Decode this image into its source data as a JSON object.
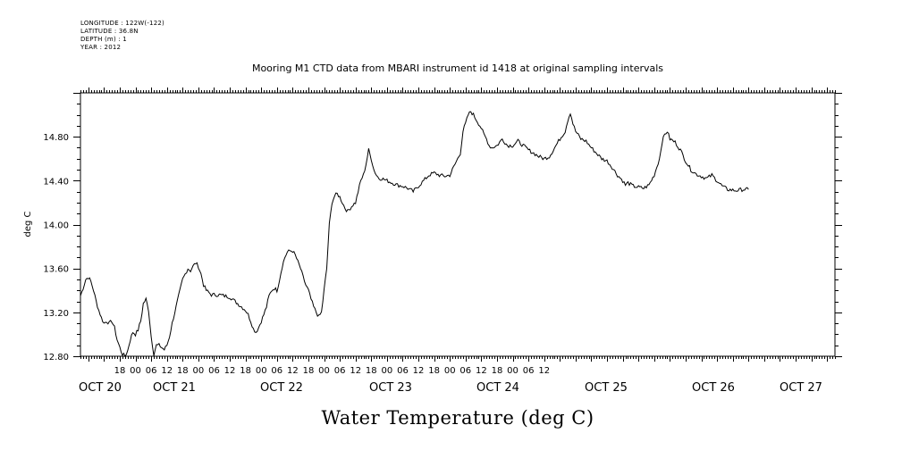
{
  "header": {
    "longitude": "LONGITUDE : 122W(-122)",
    "latitude": "LATITUDE : 36.8N",
    "depth": "DEPTH (m) : 1",
    "year": "YEAR : 2012"
  },
  "chart_data": {
    "type": "line",
    "title": "Mooring M1 CTD data from MBARI instrument id 1418 at original sampling intervals",
    "xlabel": "Water Temperature (deg C)",
    "ylabel": "deg C",
    "ylim": [
      12.8,
      15.2
    ],
    "xlim_hours": [
      -45,
      243
    ],
    "y_ticks": [
      "12.80",
      "13.20",
      "13.60",
      "14.00",
      "14.40",
      "14.80"
    ],
    "hour_ticks": [
      "18",
      "00",
      "06",
      "12",
      "18",
      "00",
      "06",
      "12",
      "18",
      "00",
      "06",
      "12",
      "18",
      "00",
      "06",
      "12",
      "18",
      "00",
      "06",
      "12",
      "18",
      "00",
      "06",
      "12",
      "18",
      "00",
      "06",
      "12"
    ],
    "date_labels": [
      "OCT 20",
      "OCT 21",
      "OCT 22",
      "OCT 23",
      "OCT 24",
      "OCT 25",
      "OCT 26",
      "OCT 27"
    ],
    "x_time_origin": "2012-10-20 00:00",
    "series": [
      {
        "color": "#000000",
        "points": [
          [
            -45,
            13.35
          ],
          [
            -44,
            13.42
          ],
          [
            -43,
            13.5
          ],
          [
            -42,
            13.52
          ],
          [
            -41,
            13.48
          ],
          [
            -40,
            13.4
          ],
          [
            -39,
            13.3
          ],
          [
            -38,
            13.22
          ],
          [
            -37,
            13.15
          ],
          [
            -36,
            13.1
          ],
          [
            -35,
            13.12
          ],
          [
            -34,
            13.1
          ],
          [
            -33,
            13.12
          ],
          [
            -32,
            13.06
          ],
          [
            -31,
            12.95
          ],
          [
            -30,
            12.88
          ],
          [
            -29,
            12.82
          ],
          [
            -28,
            12.8
          ],
          [
            -27,
            12.85
          ],
          [
            -26,
            12.95
          ],
          [
            -25,
            13.02
          ],
          [
            -24,
            13.0
          ],
          [
            -23,
            13.04
          ],
          [
            -22,
            13.12
          ],
          [
            -21,
            13.28
          ],
          [
            -20,
            13.32
          ],
          [
            -19,
            13.22
          ],
          [
            -18,
            12.98
          ],
          [
            -17,
            12.82
          ],
          [
            -16,
            12.9
          ],
          [
            -15,
            12.9
          ],
          [
            -14,
            12.88
          ],
          [
            -13,
            12.86
          ],
          [
            -12,
            12.9
          ],
          [
            -11,
            12.98
          ],
          [
            -10,
            13.1
          ],
          [
            -9,
            13.2
          ],
          [
            -8,
            13.3
          ],
          [
            -7,
            13.4
          ],
          [
            -6,
            13.5
          ],
          [
            -5,
            13.55
          ],
          [
            -4,
            13.6
          ],
          [
            -3,
            13.58
          ],
          [
            -2,
            13.62
          ],
          [
            -1,
            13.65
          ],
          [
            0,
            13.62
          ],
          [
            1,
            13.55
          ],
          [
            2,
            13.45
          ],
          [
            3,
            13.4
          ],
          [
            4,
            13.38
          ],
          [
            5,
            13.36
          ],
          [
            6,
            13.36
          ],
          [
            8,
            13.36
          ],
          [
            10,
            13.35
          ],
          [
            12,
            13.34
          ],
          [
            14,
            13.3
          ],
          [
            16,
            13.26
          ],
          [
            18,
            13.22
          ],
          [
            19,
            13.18
          ],
          [
            20,
            13.12
          ],
          [
            21,
            13.05
          ],
          [
            22,
            13.02
          ],
          [
            23,
            13.06
          ],
          [
            24,
            13.12
          ],
          [
            25,
            13.18
          ],
          [
            26,
            13.25
          ],
          [
            27,
            13.35
          ],
          [
            28,
            13.4
          ],
          [
            29,
            13.42
          ],
          [
            30,
            13.4
          ],
          [
            31,
            13.5
          ],
          [
            32,
            13.62
          ],
          [
            33,
            13.7
          ],
          [
            34,
            13.75
          ],
          [
            35,
            13.76
          ],
          [
            36,
            13.76
          ],
          [
            37,
            13.72
          ],
          [
            38,
            13.66
          ],
          [
            39,
            13.6
          ],
          [
            40,
            13.52
          ],
          [
            41,
            13.45
          ],
          [
            42,
            13.4
          ],
          [
            43,
            13.32
          ],
          [
            44,
            13.25
          ],
          [
            45,
            13.2
          ],
          [
            46,
            13.16
          ],
          [
            47,
            13.2
          ],
          [
            48,
            13.4
          ],
          [
            49,
            13.6
          ],
          [
            50,
            14.0
          ],
          [
            51,
            14.2
          ],
          [
            52,
            14.26
          ],
          [
            53,
            14.28
          ],
          [
            54,
            14.25
          ],
          [
            55,
            14.2
          ],
          [
            56,
            14.15
          ],
          [
            57,
            14.12
          ],
          [
            58,
            14.15
          ],
          [
            59,
            14.18
          ],
          [
            60,
            14.2
          ],
          [
            61,
            14.3
          ],
          [
            62,
            14.4
          ],
          [
            63,
            14.45
          ],
          [
            64,
            14.55
          ],
          [
            65,
            14.68
          ],
          [
            66,
            14.6
          ],
          [
            67,
            14.5
          ],
          [
            68,
            14.45
          ],
          [
            69,
            14.42
          ],
          [
            70,
            14.42
          ],
          [
            72,
            14.4
          ],
          [
            74,
            14.38
          ],
          [
            76,
            14.36
          ],
          [
            78,
            14.35
          ],
          [
            80,
            14.33
          ],
          [
            82,
            14.3
          ],
          [
            84,
            14.35
          ],
          [
            86,
            14.4
          ],
          [
            88,
            14.45
          ],
          [
            90,
            14.47
          ],
          [
            92,
            14.45
          ],
          [
            94,
            14.44
          ],
          [
            96,
            14.45
          ],
          [
            98,
            14.55
          ],
          [
            100,
            14.65
          ],
          [
            101,
            14.85
          ],
          [
            102,
            14.92
          ],
          [
            103,
            15.0
          ],
          [
            104,
            15.03
          ],
          [
            105,
            15.0
          ],
          [
            106,
            14.96
          ],
          [
            107,
            14.92
          ],
          [
            108,
            14.88
          ],
          [
            109,
            14.82
          ],
          [
            110,
            14.78
          ],
          [
            111,
            14.72
          ],
          [
            112,
            14.7
          ],
          [
            114,
            14.72
          ],
          [
            116,
            14.78
          ],
          [
            118,
            14.72
          ],
          [
            120,
            14.72
          ],
          [
            122,
            14.76
          ],
          [
            124,
            14.72
          ],
          [
            126,
            14.68
          ],
          [
            128,
            14.65
          ],
          [
            130,
            14.62
          ],
          [
            132,
            14.6
          ],
          [
            134,
            14.62
          ],
          [
            136,
            14.7
          ],
          [
            138,
            14.78
          ],
          [
            140,
            14.85
          ],
          [
            141,
            14.95
          ],
          [
            142,
            15.02
          ],
          [
            143,
            14.92
          ],
          [
            144,
            14.85
          ],
          [
            146,
            14.78
          ],
          [
            148,
            14.76
          ],
          [
            150,
            14.7
          ],
          [
            152,
            14.65
          ],
          [
            154,
            14.6
          ],
          [
            156,
            14.58
          ],
          [
            158,
            14.52
          ],
          [
            160,
            14.45
          ],
          [
            162,
            14.4
          ],
          [
            163,
            14.36
          ],
          [
            164,
            14.38
          ],
          [
            166,
            14.35
          ],
          [
            168,
            14.34
          ],
          [
            170,
            14.33
          ],
          [
            172,
            14.36
          ],
          [
            174,
            14.45
          ],
          [
            176,
            14.6
          ],
          [
            177,
            14.75
          ],
          [
            178,
            14.82
          ],
          [
            179,
            14.85
          ],
          [
            180,
            14.78
          ],
          [
            182,
            14.75
          ],
          [
            184,
            14.68
          ],
          [
            186,
            14.58
          ],
          [
            188,
            14.5
          ],
          [
            190,
            14.46
          ],
          [
            192,
            14.44
          ],
          [
            194,
            14.42
          ],
          [
            196,
            14.45
          ],
          [
            198,
            14.4
          ],
          [
            200,
            14.35
          ],
          [
            202,
            14.32
          ],
          [
            205,
            14.31
          ],
          [
            208,
            14.32
          ],
          [
            210,
            14.32
          ]
        ]
      }
    ]
  }
}
